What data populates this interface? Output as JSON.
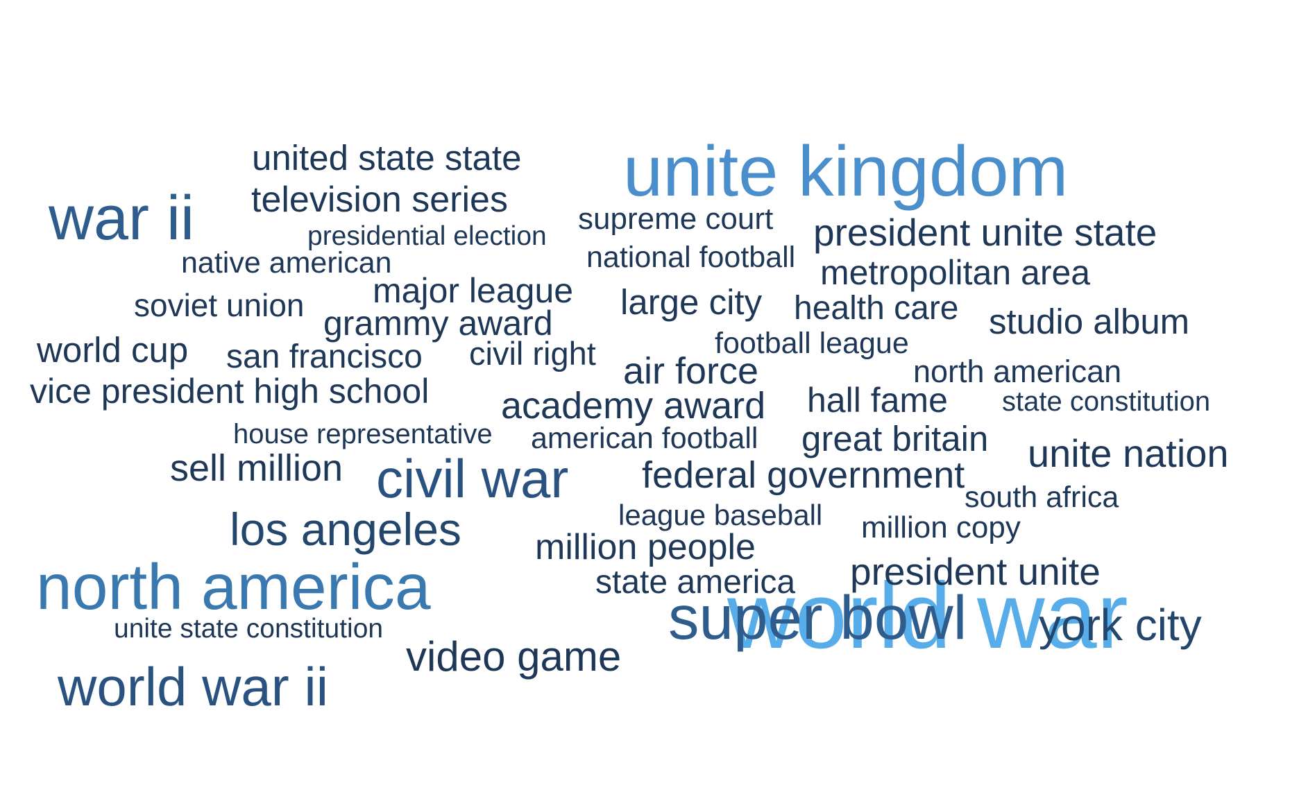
{
  "palette": {
    "darkest": "#1e3757",
    "dark": "#23466d",
    "mid": "#2e5c8c",
    "medium": "#3a78b0",
    "light": "#4a8fcc",
    "lightest": "#56adea"
  },
  "words": [
    {
      "text": "world war",
      "color": "#56adea"
    },
    {
      "text": "unite kingdom",
      "color": "#4a8fcc"
    },
    {
      "text": "north america",
      "color": "#3a78b0"
    },
    {
      "text": "super bowl",
      "color": "#2e5c8c"
    },
    {
      "text": "war ii",
      "color": "#2e5c8c"
    },
    {
      "text": "world war ii",
      "color": "#2a5280"
    },
    {
      "text": "civil war",
      "color": "#2a5280"
    },
    {
      "text": "los angeles",
      "color": "#23466d"
    },
    {
      "text": "york city",
      "color": "#23466d"
    },
    {
      "text": "video game",
      "color": "#1e3757"
    },
    {
      "text": "unite nation",
      "color": "#1e3757"
    },
    {
      "text": "president unite state",
      "color": "#1e3757"
    },
    {
      "text": "president unite",
      "color": "#1e3757"
    },
    {
      "text": "academy award",
      "color": "#1e3757"
    },
    {
      "text": "air force",
      "color": "#1e3757"
    },
    {
      "text": "large city",
      "color": "#1e3757"
    },
    {
      "text": "metropolitan area",
      "color": "#1e3757"
    },
    {
      "text": "television series",
      "color": "#1e3757"
    },
    {
      "text": "united state state",
      "color": "#1e3757"
    },
    {
      "text": "vice president high school",
      "color": "#1e3757"
    },
    {
      "text": "federal government",
      "color": "#1e3757"
    },
    {
      "text": "great britain",
      "color": "#1e3757"
    },
    {
      "text": "studio album",
      "color": "#1e3757"
    },
    {
      "text": "hall fame",
      "color": "#1e3757"
    },
    {
      "text": "million people",
      "color": "#1e3757"
    },
    {
      "text": "state america",
      "color": "#1e3757"
    },
    {
      "text": "sell million",
      "color": "#1e3757"
    },
    {
      "text": "major league",
      "color": "#1e3757"
    },
    {
      "text": "grammy award",
      "color": "#1e3757"
    },
    {
      "text": "world cup",
      "color": "#1e3757"
    },
    {
      "text": "health care",
      "color": "#1e3757"
    },
    {
      "text": "san francisco",
      "color": "#1e3757"
    },
    {
      "text": "north american",
      "color": "#1e3757"
    },
    {
      "text": "soviet union",
      "color": "#1e3757"
    },
    {
      "text": "civil right",
      "color": "#1e3757"
    },
    {
      "text": "supreme court",
      "color": "#1e3757"
    },
    {
      "text": "native american",
      "color": "#1e3757"
    },
    {
      "text": "national football",
      "color": "#1e3757"
    },
    {
      "text": "football league",
      "color": "#1e3757"
    },
    {
      "text": "american football",
      "color": "#1e3757"
    },
    {
      "text": "south africa",
      "color": "#1e3757"
    },
    {
      "text": "million copy",
      "color": "#1e3757"
    },
    {
      "text": "presidential election",
      "color": "#1e3757"
    },
    {
      "text": "house representative",
      "color": "#1e3757"
    },
    {
      "text": "league baseball",
      "color": "#1e3757"
    },
    {
      "text": "state constitution",
      "color": "#1e3757"
    },
    {
      "text": "unite state constitution",
      "color": "#1e3757"
    }
  ]
}
